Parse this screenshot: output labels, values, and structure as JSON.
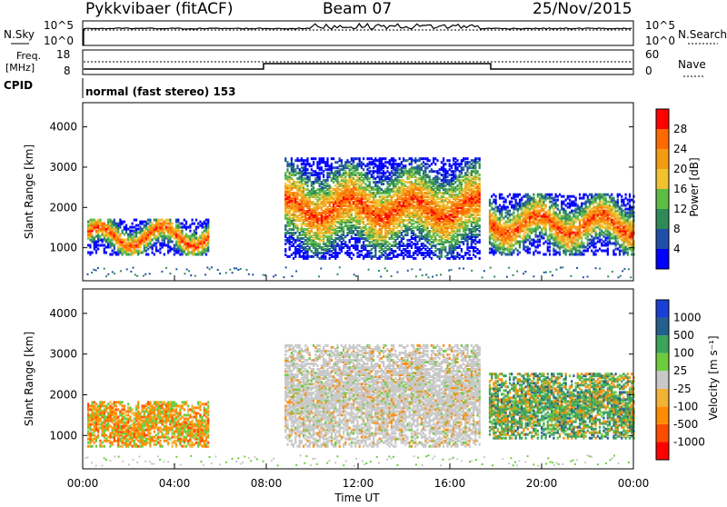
{
  "header": {
    "station": "Pykkvibaer (fitACF)",
    "beam": "Beam 07",
    "date": "25/Nov/2015"
  },
  "panels": {
    "nsky_label": "N.Sky",
    "nsky_ticks": [
      "10^5",
      "10^0"
    ],
    "nsearch_label": "N.Search",
    "nsearch_ticks": [
      "10^5",
      "10^0"
    ],
    "freq_label_1": "Freq.",
    "freq_label_2": "[MHz]",
    "freq_ticks": [
      "18",
      "8"
    ],
    "nave_label": "Nave",
    "nave_ticks": [
      "60",
      "0"
    ],
    "cpid_label": "CPID",
    "cpid_text": "normal (fast stereo) 153"
  },
  "colors": {
    "power": [
      "#0000ff",
      "#1f4fa8",
      "#2e8b57",
      "#5dbb46",
      "#f2c12e",
      "#f39c12",
      "#ff6a00",
      "#ff0000"
    ],
    "velocity": [
      "#ff0000",
      "#ff4d00",
      "#ff8c00",
      "#f2b233",
      "#c8c8c8",
      "#6ecb3c",
      "#3aa45a",
      "#23608e",
      "#1a3fd6"
    ]
  },
  "chart_data": [
    {
      "type": "heatmap",
      "panel": "power",
      "ylabel": "Slant Range [km]",
      "yticks": [
        1000,
        2000,
        3000,
        4000
      ],
      "ylim": [
        180,
        4600
      ],
      "xlim": [
        0,
        24
      ],
      "colorbar_label": "Power [dB]",
      "colorbar_ticks": [
        "4",
        "8",
        "12",
        "16",
        "20",
        "24",
        "28"
      ],
      "regions": [
        {
          "t0": 0.2,
          "t1": 5.5,
          "r0": 800,
          "r1": 1700,
          "peak": 24
        },
        {
          "t0": 8.8,
          "t1": 17.3,
          "r0": 700,
          "r1": 3200,
          "peak": 30
        },
        {
          "t0": 17.7,
          "t1": 24.0,
          "r0": 800,
          "r1": 2300,
          "peak": 26
        }
      ]
    },
    {
      "type": "heatmap",
      "panel": "velocity",
      "ylabel": "Slant Range [km]",
      "yticks": [
        1000,
        2000,
        3000,
        4000
      ],
      "ylim": [
        180,
        4600
      ],
      "xlim": [
        0,
        24
      ],
      "xticks": [
        "00:00",
        "04:00",
        "08:00",
        "12:00",
        "16:00",
        "20:00",
        "00:00"
      ],
      "xlabel": "Time UT",
      "colorbar_label": "Velocity [m s⁻¹]",
      "colorbar_ticks": [
        "1000",
        "500",
        "100",
        "25",
        "-25",
        "-100",
        "-500",
        "-1000"
      ],
      "regions": [
        {
          "t0": 0.2,
          "t1": 5.5,
          "r0": 700,
          "r1": 1800,
          "dominant": -100
        },
        {
          "t0": 8.8,
          "t1": 17.3,
          "r0": 700,
          "r1": 3200,
          "dominant": 0
        },
        {
          "t0": 17.7,
          "t1": 24.0,
          "r0": 900,
          "r1": 2500,
          "dominant": 100
        }
      ]
    }
  ]
}
